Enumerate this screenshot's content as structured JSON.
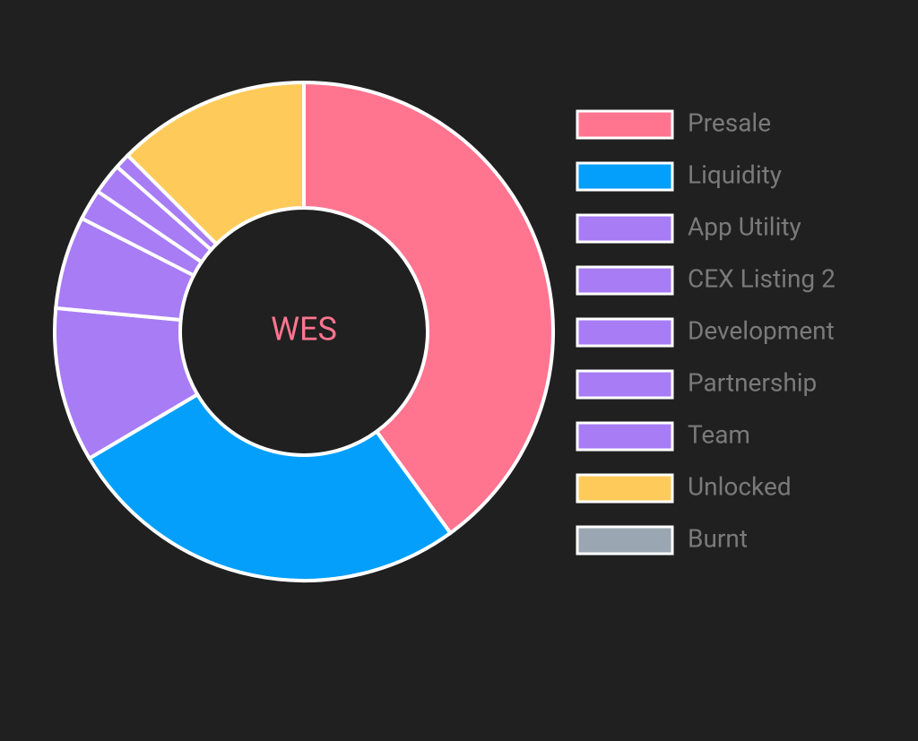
{
  "chart_data": {
    "type": "pie",
    "center_text": "WES",
    "categories": [
      "Presale",
      "Liquidity",
      "App Utility",
      "CEX Listing 2",
      "Development",
      "Partnership",
      "Team",
      "Unlocked",
      "Burnt"
    ],
    "values": [
      40,
      26.5,
      10,
      6,
      2,
      2,
      1,
      12.5,
      0
    ],
    "colors": [
      "#ff7590",
      "#039ffb",
      "#a77cf5",
      "#a77cf5",
      "#a77cf5",
      "#a77cf5",
      "#a77cf5",
      "#fecb5b",
      "#9aa6b2"
    ],
    "legend": "right"
  }
}
